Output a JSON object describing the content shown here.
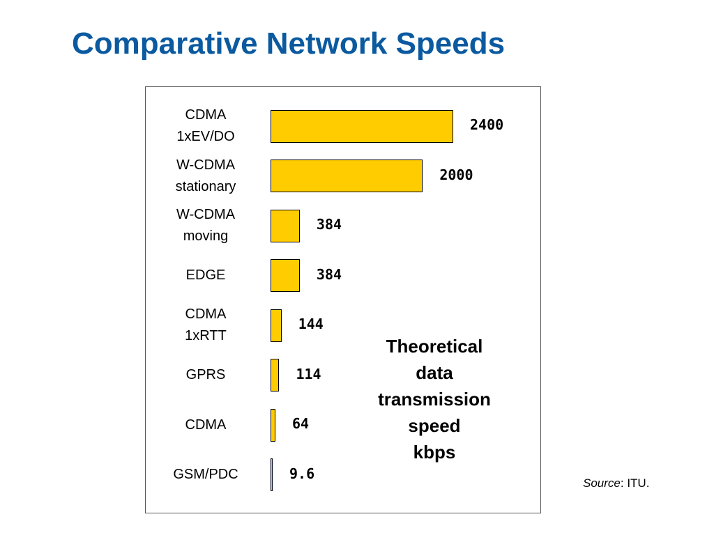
{
  "slide": {
    "title": "Comparative Network Speeds",
    "source_label": "Source",
    "source_value": ": ITU."
  },
  "chart_data": {
    "type": "bar",
    "orientation": "horizontal",
    "title": "",
    "categories": [
      [
        "CDMA",
        "1xEV/DO"
      ],
      [
        "W-CDMA",
        "stationary"
      ],
      [
        "W-CDMA",
        "moving"
      ],
      [
        "EDGE"
      ],
      [
        "CDMA",
        "1xRTT"
      ],
      [
        "GPRS"
      ],
      [
        "CDMA"
      ],
      [
        "GSM/PDC"
      ]
    ],
    "values": [
      2400,
      2000,
      384,
      384,
      144,
      114,
      64,
      9.6
    ],
    "value_labels": [
      "2400",
      "2000",
      "384",
      "384",
      "144",
      "114",
      "64",
      "9.6"
    ],
    "annotation": [
      "Theoretical",
      "data",
      "transmission",
      "speed",
      "kbps"
    ],
    "xlim": [
      0,
      2400
    ],
    "grid": false,
    "legend": "none",
    "colors": {
      "bar_fill": "#ffcc00",
      "bar_border": "#000000",
      "title": "#0b5aa0"
    }
  }
}
